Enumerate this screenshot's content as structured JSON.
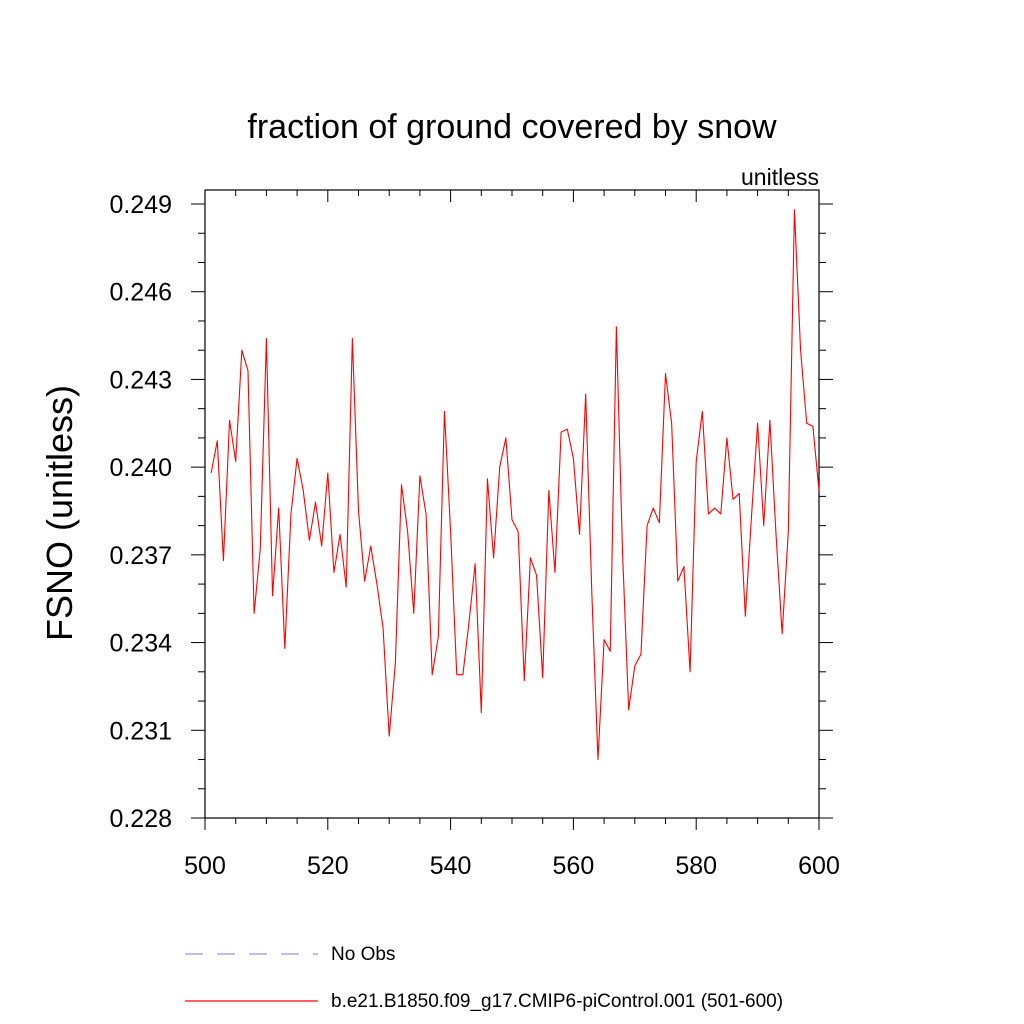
{
  "chart_data": {
    "type": "line",
    "title": "fraction of ground covered by snow",
    "units_label": "unitless",
    "xlabel": "",
    "ylabel": "FSNO  (unitless)",
    "xlim": [
      500,
      600
    ],
    "ylim": [
      0.228,
      0.249
    ],
    "x_ticks": [
      500,
      520,
      540,
      560,
      580,
      600
    ],
    "x_tick_labels": [
      "500",
      "520",
      "540",
      "560",
      "580",
      "600"
    ],
    "y_ticks": [
      0.228,
      0.231,
      0.234,
      0.237,
      0.24,
      0.243,
      0.246,
      0.249
    ],
    "y_tick_labels": [
      "0.228",
      "0.231",
      "0.234",
      "0.237",
      "0.240",
      "0.243",
      "0.246",
      "0.249"
    ],
    "series": [
      {
        "name": "b.e21.B1850.f09_g17.CMIP6-piControl.001 (501-600)",
        "color": "#ff0000",
        "x": [
          501,
          502,
          503,
          504,
          505,
          506,
          507,
          508,
          509,
          510,
          511,
          512,
          513,
          514,
          515,
          516,
          517,
          518,
          519,
          520,
          521,
          522,
          523,
          524,
          525,
          526,
          527,
          528,
          529,
          530,
          531,
          532,
          533,
          534,
          535,
          536,
          537,
          538,
          539,
          540,
          541,
          542,
          543,
          544,
          545,
          546,
          547,
          548,
          549,
          550,
          551,
          552,
          553,
          554,
          555,
          556,
          557,
          558,
          559,
          560,
          561,
          562,
          563,
          564,
          565,
          566,
          567,
          568,
          569,
          570,
          571,
          572,
          573,
          574,
          575,
          576,
          577,
          578,
          579,
          580,
          581,
          582,
          583,
          584,
          585,
          586,
          587,
          588,
          589,
          590,
          591,
          592,
          593,
          594,
          595,
          596,
          597,
          598,
          599,
          600
        ],
        "values": [
          0.2398,
          0.2409,
          0.2368,
          0.2416,
          0.2402,
          0.244,
          0.2433,
          0.235,
          0.2372,
          0.2444,
          0.2356,
          0.2386,
          0.2338,
          0.2384,
          0.2403,
          0.2392,
          0.2375,
          0.2388,
          0.2373,
          0.2398,
          0.2364,
          0.2377,
          0.2359,
          0.2444,
          0.2385,
          0.2361,
          0.2373,
          0.236,
          0.2345,
          0.2308,
          0.2333,
          0.2394,
          0.2378,
          0.235,
          0.2397,
          0.2384,
          0.2329,
          0.2342,
          0.2419,
          0.2378,
          0.2329,
          0.2329,
          0.2347,
          0.2367,
          0.2316,
          0.2396,
          0.2369,
          0.24,
          0.241,
          0.2382,
          0.2378,
          0.2327,
          0.2369,
          0.2363,
          0.2328,
          0.2392,
          0.2364,
          0.2412,
          0.2413,
          0.2403,
          0.2377,
          0.2425,
          0.2357,
          0.23,
          0.2341,
          0.2337,
          0.2448,
          0.2371,
          0.2317,
          0.2332,
          0.2336,
          0.238,
          0.2386,
          0.2381,
          0.2432,
          0.2415,
          0.2361,
          0.2366,
          0.233,
          0.2402,
          0.2419,
          0.2384,
          0.2386,
          0.2384,
          0.241,
          0.2389,
          0.2391,
          0.2349,
          0.2383,
          0.2415,
          0.238,
          0.2416,
          0.2377,
          0.2343,
          0.2378,
          0.2488,
          0.244,
          0.2415,
          0.2414,
          0.2392
        ]
      },
      {
        "name": "No Obs",
        "color": "#9999dd",
        "style": "dashed",
        "x": [],
        "values": []
      }
    ],
    "legend_position": "bottom"
  }
}
